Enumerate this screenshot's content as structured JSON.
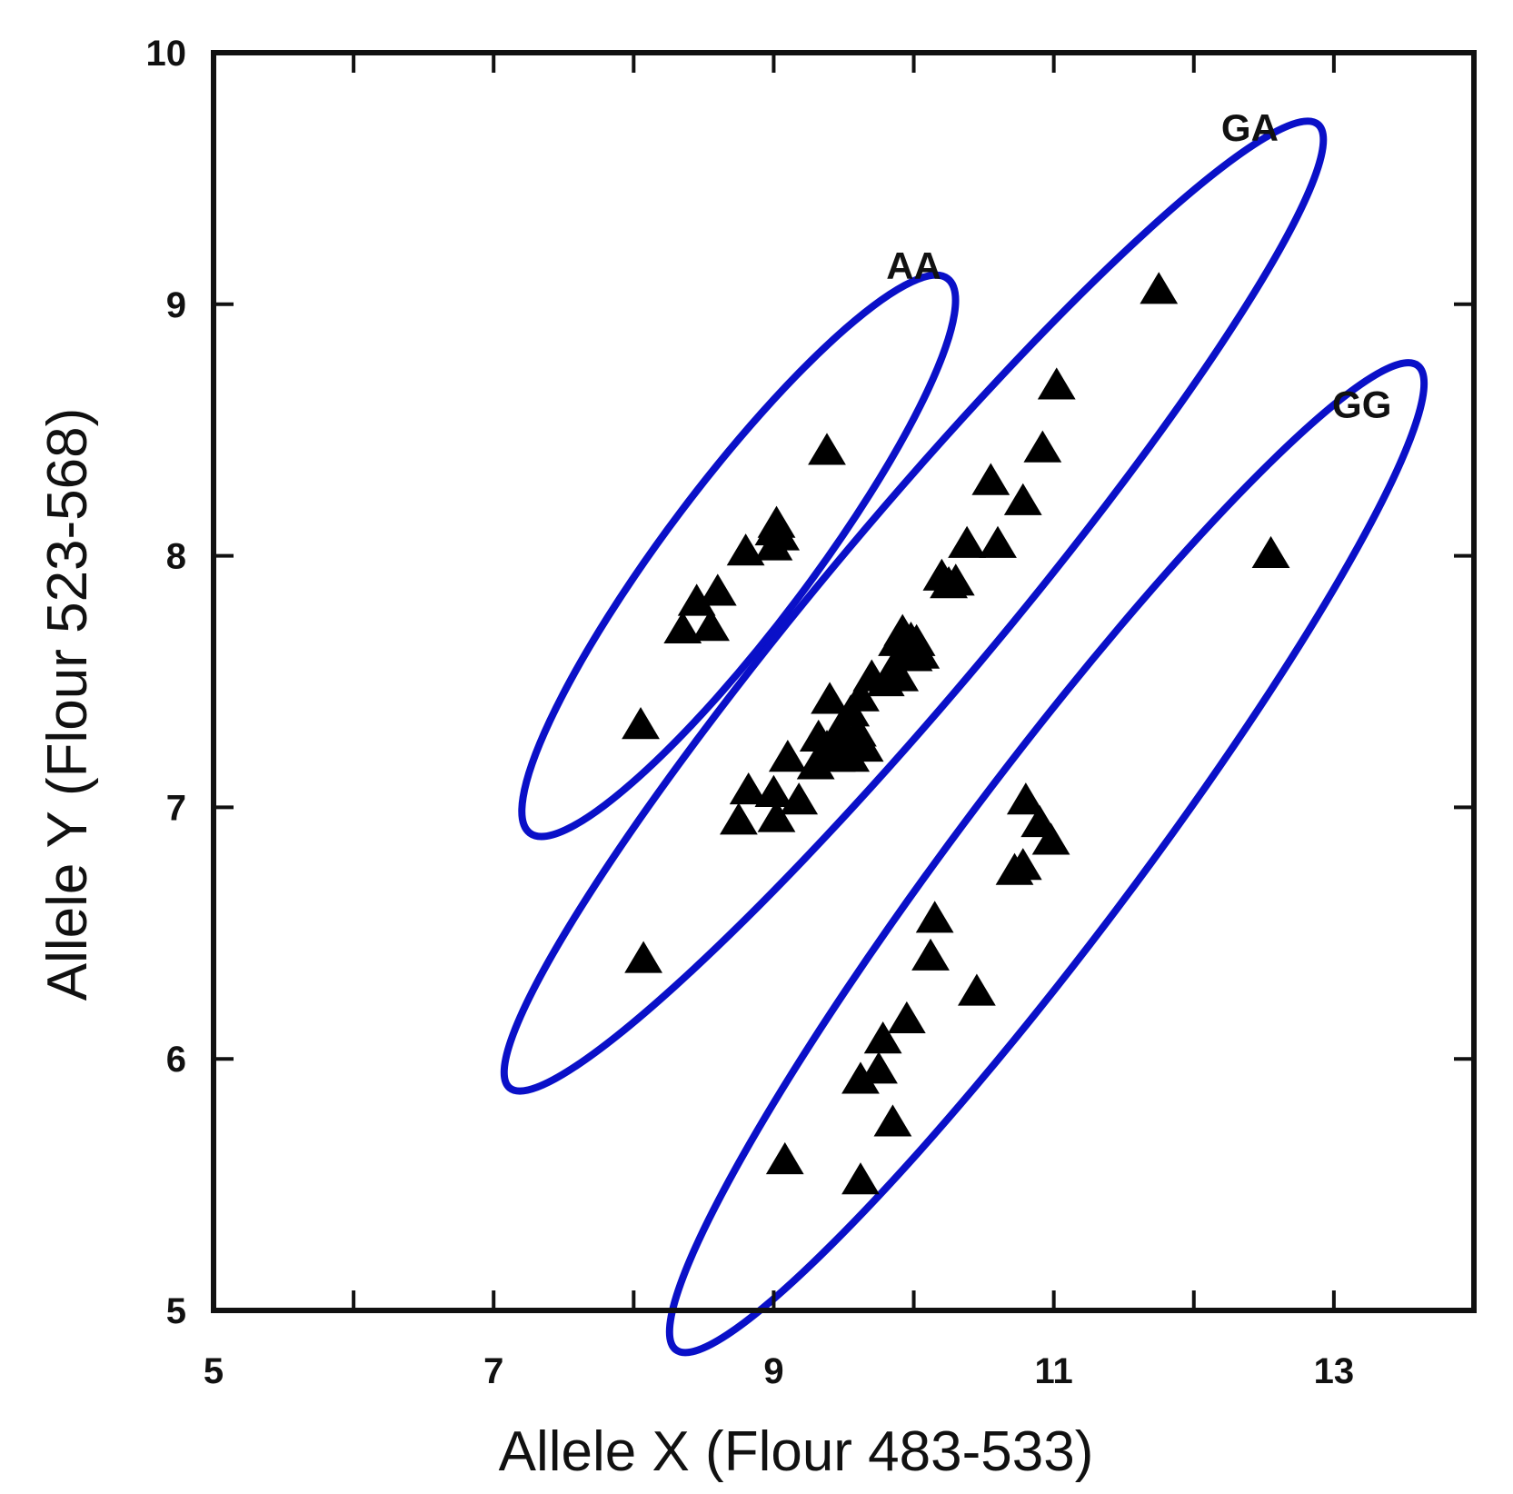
{
  "chart_data": {
    "type": "scatter",
    "xlabel": "Allele X (Flour 483-533)",
    "ylabel": "Allele Y (Flour 523-568)",
    "xlim": [
      5,
      14
    ],
    "ylim": [
      5,
      10
    ],
    "x_ticks": [
      5,
      6,
      7,
      8,
      9,
      10,
      11,
      12,
      13
    ],
    "x_tick_labels": [
      {
        "value": 5,
        "label": "5"
      },
      {
        "value": 7,
        "label": "7"
      },
      {
        "value": 9,
        "label": "9"
      },
      {
        "value": 11,
        "label": "11"
      },
      {
        "value": 13,
        "label": "13"
      }
    ],
    "y_ticks": [
      5,
      6,
      7,
      8,
      9,
      10
    ],
    "y_tick_labels": [
      {
        "value": 5,
        "label": "5"
      },
      {
        "value": 6,
        "label": "6"
      },
      {
        "value": 7,
        "label": "7"
      },
      {
        "value": 8,
        "label": "8"
      },
      {
        "value": 9,
        "label": "9"
      },
      {
        "value": 10,
        "label": "10"
      }
    ],
    "grid": false,
    "marker": "triangle",
    "marker_color": "#000000",
    "cluster_color": "#0a10c8",
    "clusters": [
      {
        "label": "AA",
        "label_pos": [
          10.0,
          9.1
        ],
        "ellipse": {
          "cx": 8.75,
          "cy": 8.0,
          "rx": 0.52,
          "ry": 1.38,
          "angle": 37
        },
        "points": [
          [
            8.05,
            7.33
          ],
          [
            8.35,
            7.71
          ],
          [
            8.45,
            7.82
          ],
          [
            8.55,
            7.72
          ],
          [
            8.6,
            7.86
          ],
          [
            8.8,
            8.02
          ],
          [
            9.0,
            8.04
          ],
          [
            9.0,
            8.1
          ],
          [
            9.05,
            8.08
          ],
          [
            9.02,
            8.13
          ],
          [
            9.38,
            8.42
          ]
        ]
      },
      {
        "label": "GA",
        "label_pos": [
          12.4,
          9.65
        ],
        "ellipse": {
          "cx": 10.0,
          "cy": 7.8,
          "rx": 0.62,
          "ry": 2.5,
          "angle": 40
        },
        "points": [
          [
            8.07,
            6.4
          ],
          [
            8.75,
            6.95
          ],
          [
            8.82,
            7.07
          ],
          [
            9.02,
            6.96
          ],
          [
            9.0,
            7.06
          ],
          [
            9.1,
            7.2
          ],
          [
            9.18,
            7.03
          ],
          [
            9.3,
            7.17
          ],
          [
            9.32,
            7.28
          ],
          [
            9.38,
            7.24
          ],
          [
            9.4,
            7.43
          ],
          [
            9.45,
            7.2
          ],
          [
            9.48,
            7.32
          ],
          [
            9.52,
            7.28
          ],
          [
            9.55,
            7.2
          ],
          [
            9.55,
            7.38
          ],
          [
            9.6,
            7.3
          ],
          [
            9.62,
            7.44
          ],
          [
            9.65,
            7.24
          ],
          [
            9.7,
            7.52
          ],
          [
            9.8,
            7.5
          ],
          [
            9.85,
            7.55
          ],
          [
            9.88,
            7.66
          ],
          [
            9.9,
            7.52
          ],
          [
            9.92,
            7.7
          ],
          [
            9.95,
            7.63
          ],
          [
            9.98,
            7.67
          ],
          [
            10.0,
            7.6
          ],
          [
            10.02,
            7.66
          ],
          [
            10.05,
            7.61
          ],
          [
            10.2,
            7.92
          ],
          [
            10.25,
            7.89
          ],
          [
            10.3,
            7.9
          ],
          [
            10.38,
            8.05
          ],
          [
            10.55,
            8.3
          ],
          [
            10.6,
            8.05
          ],
          [
            10.78,
            8.22
          ],
          [
            10.92,
            8.43
          ],
          [
            11.02,
            8.68
          ],
          [
            11.75,
            9.06
          ]
        ]
      },
      {
        "label": "GG",
        "label_pos": [
          13.2,
          8.55
        ],
        "ellipse": {
          "cx": 10.95,
          "cy": 6.8,
          "rx": 0.62,
          "ry": 2.45,
          "angle": 37
        },
        "points": [
          [
            9.08,
            5.6
          ],
          [
            9.62,
            5.52
          ],
          [
            9.62,
            5.92
          ],
          [
            9.75,
            5.96
          ],
          [
            9.78,
            6.08
          ],
          [
            9.85,
            5.75
          ],
          [
            9.95,
            6.16
          ],
          [
            10.12,
            6.41
          ],
          [
            10.15,
            6.56
          ],
          [
            10.45,
            6.27
          ],
          [
            10.72,
            6.75
          ],
          [
            10.78,
            6.77
          ],
          [
            10.8,
            7.03
          ],
          [
            10.9,
            6.94
          ],
          [
            10.98,
            6.87
          ],
          [
            12.55,
            8.01
          ]
        ]
      }
    ]
  }
}
